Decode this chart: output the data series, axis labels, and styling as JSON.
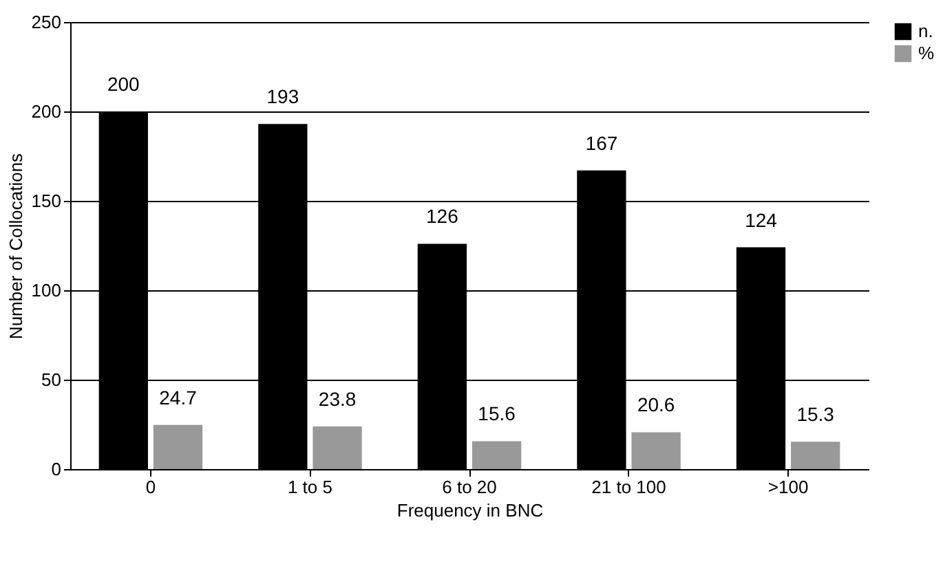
{
  "chart_data": {
    "type": "bar",
    "xlabel": "Frequency in BNC",
    "ylabel": "Number of Collocations",
    "categories": [
      "0",
      "1 to 5",
      "6 to 20",
      "21 to 100",
      ">100"
    ],
    "series": [
      {
        "name": "n.",
        "color": "#000000",
        "values": [
          200,
          193,
          126,
          167,
          124
        ]
      },
      {
        "name": "%",
        "color": "#999999",
        "values": [
          24.7,
          23.8,
          15.6,
          20.6,
          15.3
        ]
      }
    ],
    "ylim": [
      0,
      250
    ],
    "yticks": [
      0,
      50,
      100,
      150,
      200,
      250
    ],
    "grid": "y",
    "legend": "right",
    "data_labels": true
  }
}
